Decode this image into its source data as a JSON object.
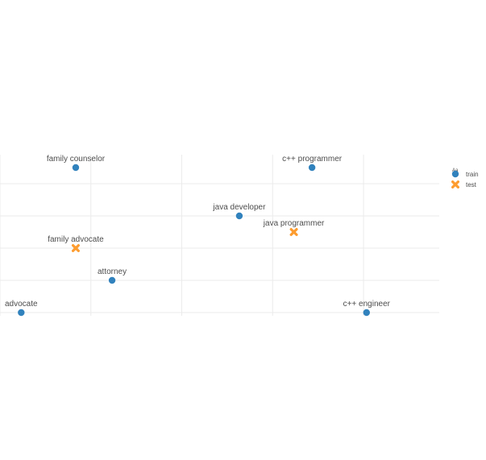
{
  "chart_data": {
    "type": "scatter",
    "title": "",
    "xlabel": "",
    "ylabel": "",
    "xlim": [
      0,
      7.25
    ],
    "ylim": [
      -0.1,
      4.9
    ],
    "x_gridlines": [
      0,
      1.5,
      3,
      4.5,
      6
    ],
    "y_gridlines": [
      0,
      1,
      2,
      3,
      4
    ],
    "grid": true,
    "legend_position": "right",
    "legend": [
      {
        "key": "train",
        "label": "train",
        "shape": "circle",
        "color": "#3182bd"
      },
      {
        "key": "test",
        "label": "test",
        "shape": "cross",
        "color": "#fd9c2f"
      }
    ],
    "points": [
      {
        "label": "family counselor",
        "x": 1.25,
        "y": 4.5,
        "set": "train"
      },
      {
        "label": "c++ programmer",
        "x": 5.15,
        "y": 4.5,
        "set": "train"
      },
      {
        "label": "java developer",
        "x": 3.95,
        "y": 3.0,
        "set": "train"
      },
      {
        "label": "java programmer",
        "x": 4.85,
        "y": 2.5,
        "set": "test"
      },
      {
        "label": "family advocate",
        "x": 1.25,
        "y": 2.0,
        "set": "test"
      },
      {
        "label": "attorney",
        "x": 1.85,
        "y": 1.0,
        "set": "train"
      },
      {
        "label": "advocate",
        "x": 0.35,
        "y": 0.0,
        "set": "train"
      },
      {
        "label": "c++ engineer",
        "x": 6.05,
        "y": 0.0,
        "set": "train"
      }
    ]
  }
}
